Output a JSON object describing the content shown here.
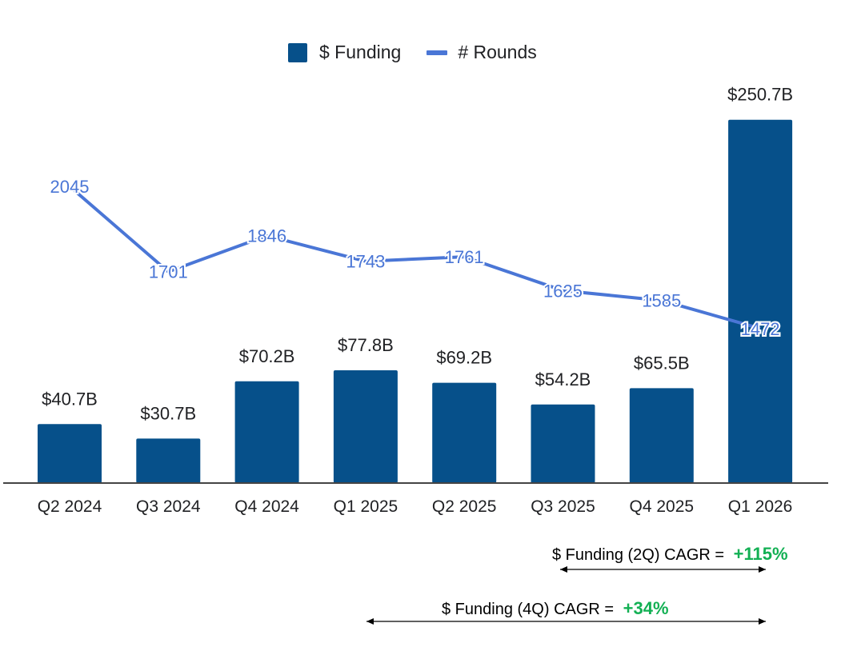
{
  "chart_data": {
    "type": "bar",
    "categories": [
      "Q2 2024",
      "Q3 2024",
      "Q4 2024",
      "Q1 2025",
      "Q2 2025",
      "Q3 2025",
      "Q4 2025",
      "Q1 2026"
    ],
    "series": [
      {
        "name": "$ Funding",
        "type": "bar",
        "axis": "right",
        "values": [
          40.7,
          30.7,
          70.2,
          77.8,
          69.2,
          54.2,
          65.5,
          250.7
        ],
        "labels": [
          "$40.7B",
          "$30.7B",
          "$70.2B",
          "$77.8B",
          "$69.2B",
          "$54.2B",
          "$65.5B",
          "$250.7B"
        ]
      },
      {
        "name": "# Rounds",
        "type": "line",
        "axis": "left",
        "values": [
          2045,
          1701,
          1846,
          1743,
          1761,
          1625,
          1585,
          1472
        ],
        "labels": [
          "2045",
          "1701",
          "1846",
          "1743",
          "1761",
          "1625",
          "1585",
          "1472"
        ]
      }
    ],
    "funding_ylim": [
      0,
      250
    ],
    "rounds_ylim": [
      0,
      2500
    ],
    "title": "",
    "xlabel": "",
    "ylabel": "",
    "legend_position": "top-center",
    "colors": {
      "funding": "#06508a",
      "rounds": "#4a76d6",
      "cagr_positive": "#13b054",
      "axis": "#444444"
    }
  },
  "legend": {
    "funding_label": "$ Funding",
    "rounds_label": "# Rounds"
  },
  "annotations": {
    "cagr_2q": {
      "label": "$ Funding (2Q) CAGR =",
      "value": "+115%"
    },
    "cagr_4q": {
      "label": "$ Funding (4Q) CAGR =",
      "value": "+34%"
    }
  }
}
